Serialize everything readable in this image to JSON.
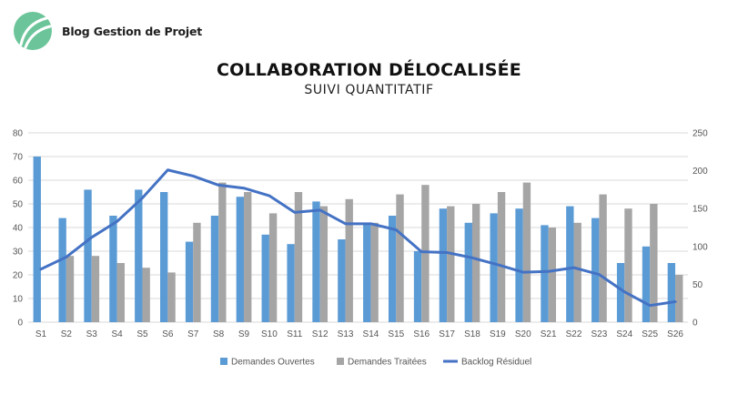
{
  "brand": {
    "name": "Blog Gestion de Projet"
  },
  "heading": {
    "title": "COLLABORATION DÉLOCALISÉE",
    "subtitle": "SUIVI QUANTITATIF"
  },
  "colors": {
    "logo": "#6cc59a",
    "bar_open": "#5b9bd5",
    "bar_treated": "#a5a5a5",
    "line": "#4472c4",
    "grid": "#d9d9d9"
  },
  "chart_data": {
    "type": "bar",
    "title": "",
    "xlabel": "",
    "ylabel": "",
    "categories": [
      "S1",
      "S2",
      "S3",
      "S4",
      "S5",
      "S6",
      "S7",
      "S8",
      "S9",
      "S10",
      "S11",
      "S12",
      "S13",
      "S14",
      "S15",
      "S16",
      "S17",
      "S18",
      "S19",
      "S20",
      "S21",
      "S22",
      "S23",
      "S24",
      "S25",
      "S26"
    ],
    "ylim": [
      0,
      80
    ],
    "yticks": [
      "0",
      "10",
      "20",
      "30",
      "40",
      "50",
      "60",
      "70",
      "80"
    ],
    "y2lim": [
      0,
      250
    ],
    "y2ticks": [
      "0",
      "50",
      "100",
      "150",
      "200",
      "250"
    ],
    "grid": true,
    "legend_position": "bottom",
    "series": [
      {
        "name": "Demandes Ouvertes",
        "type": "bar",
        "axis": "left",
        "values": [
          70,
          44,
          56,
          45,
          56,
          55,
          34,
          45,
          53,
          37,
          33,
          51,
          35,
          42,
          45,
          30,
          48,
          42,
          46,
          48,
          41,
          49,
          44,
          25,
          32,
          25
        ]
      },
      {
        "name": "Demandes Traitées",
        "type": "bar",
        "axis": "left",
        "values": [
          0,
          28,
          28,
          25,
          23,
          21,
          42,
          59,
          55,
          46,
          55,
          49,
          52,
          42,
          54,
          58,
          49,
          50,
          55,
          59,
          40,
          42,
          54,
          48,
          50,
          20
        ]
      },
      {
        "name": "Backlog Résiduel",
        "type": "line",
        "axis": "right",
        "values": [
          70,
          86,
          112,
          133,
          164,
          201,
          193,
          181,
          177,
          167,
          145,
          148,
          130,
          130,
          122,
          93,
          92,
          85,
          76,
          66,
          67,
          72,
          63,
          40,
          22,
          27
        ]
      }
    ]
  }
}
